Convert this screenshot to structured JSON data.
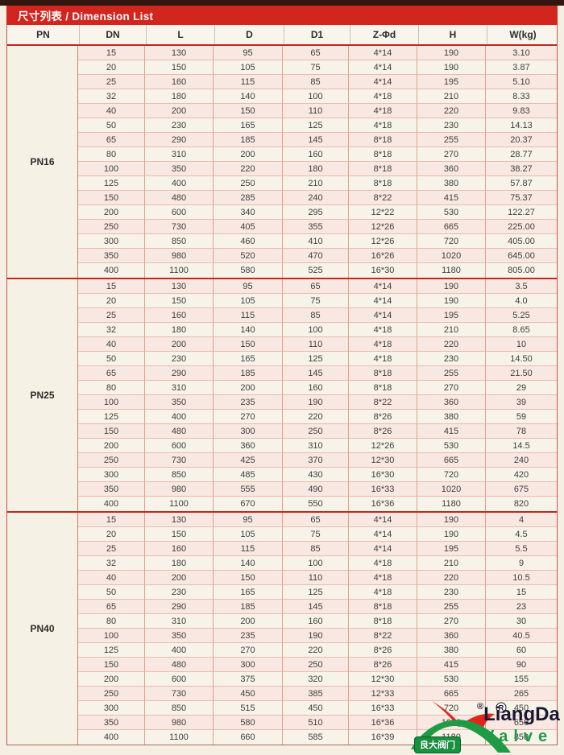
{
  "page": {
    "title": "尺寸列表 / Dimension List"
  },
  "theme": {
    "header_red": "#d2251e",
    "line_red": "#c0271d",
    "row_pink": "#f8e8e1",
    "row_cream": "#f7f3e9",
    "page_bg": "#f5efe3",
    "logo_green": "#1e9b44",
    "logo_red": "#e2241b",
    "brand_navy": "#191832",
    "badge_green": "#16923f"
  },
  "table": {
    "headers": [
      "PN",
      "DN",
      "L",
      "D",
      "D1",
      "Z-Φd",
      "H",
      "W(kg)"
    ],
    "sections": [
      {
        "pn": "PN16",
        "rows": [
          [
            "15",
            "130",
            "95",
            "65",
            "4*14",
            "190",
            "3.10"
          ],
          [
            "20",
            "150",
            "105",
            "75",
            "4*14",
            "190",
            "3.87"
          ],
          [
            "25",
            "160",
            "115",
            "85",
            "4*14",
            "195",
            "5.10"
          ],
          [
            "32",
            "180",
            "140",
            "100",
            "4*18",
            "210",
            "8.33"
          ],
          [
            "40",
            "200",
            "150",
            "110",
            "4*18",
            "220",
            "9.83"
          ],
          [
            "50",
            "230",
            "165",
            "125",
            "4*18",
            "230",
            "14.13"
          ],
          [
            "65",
            "290",
            "185",
            "145",
            "8*18",
            "255",
            "20.37"
          ],
          [
            "80",
            "310",
            "200",
            "160",
            "8*18",
            "270",
            "28.77"
          ],
          [
            "100",
            "350",
            "220",
            "180",
            "8*18",
            "360",
            "38.27"
          ],
          [
            "125",
            "400",
            "250",
            "210",
            "8*18",
            "380",
            "57.87"
          ],
          [
            "150",
            "480",
            "285",
            "240",
            "8*22",
            "415",
            "75.37"
          ],
          [
            "200",
            "600",
            "340",
            "295",
            "12*22",
            "530",
            "122.27"
          ],
          [
            "250",
            "730",
            "405",
            "355",
            "12*26",
            "665",
            "225.00"
          ],
          [
            "300",
            "850",
            "460",
            "410",
            "12*26",
            "720",
            "405.00"
          ],
          [
            "350",
            "980",
            "520",
            "470",
            "16*26",
            "1020",
            "645.00"
          ],
          [
            "400",
            "1100",
            "580",
            "525",
            "16*30",
            "1180",
            "805.00"
          ]
        ]
      },
      {
        "pn": "PN25",
        "rows": [
          [
            "15",
            "130",
            "95",
            "65",
            "4*14",
            "190",
            "3.5"
          ],
          [
            "20",
            "150",
            "105",
            "75",
            "4*14",
            "190",
            "4.0"
          ],
          [
            "25",
            "160",
            "115",
            "85",
            "4*14",
            "195",
            "5.25"
          ],
          [
            "32",
            "180",
            "140",
            "100",
            "4*18",
            "210",
            "8.65"
          ],
          [
            "40",
            "200",
            "150",
            "110",
            "4*18",
            "220",
            "10"
          ],
          [
            "50",
            "230",
            "165",
            "125",
            "4*18",
            "230",
            "14.50"
          ],
          [
            "65",
            "290",
            "185",
            "145",
            "8*18",
            "255",
            "21.50"
          ],
          [
            "80",
            "310",
            "200",
            "160",
            "8*18",
            "270",
            "29"
          ],
          [
            "100",
            "350",
            "235",
            "190",
            "8*22",
            "360",
            "39"
          ],
          [
            "125",
            "400",
            "270",
            "220",
            "8*26",
            "380",
            "59"
          ],
          [
            "150",
            "480",
            "300",
            "250",
            "8*26",
            "415",
            "78"
          ],
          [
            "200",
            "600",
            "360",
            "310",
            "12*26",
            "530",
            "14.5"
          ],
          [
            "250",
            "730",
            "425",
            "370",
            "12*30",
            "665",
            "240"
          ],
          [
            "300",
            "850",
            "485",
            "430",
            "16*30",
            "720",
            "420"
          ],
          [
            "350",
            "980",
            "555",
            "490",
            "16*33",
            "1020",
            "675"
          ],
          [
            "400",
            "1100",
            "670",
            "550",
            "16*36",
            "1180",
            "820"
          ]
        ]
      },
      {
        "pn": "PN40",
        "rows": [
          [
            "15",
            "130",
            "95",
            "65",
            "4*14",
            "190",
            "4"
          ],
          [
            "20",
            "150",
            "105",
            "75",
            "4*14",
            "190",
            "4.5"
          ],
          [
            "25",
            "160",
            "115",
            "85",
            "4*14",
            "195",
            "5.5"
          ],
          [
            "32",
            "180",
            "140",
            "100",
            "4*18",
            "210",
            "9"
          ],
          [
            "40",
            "200",
            "150",
            "110",
            "4*18",
            "220",
            "10.5"
          ],
          [
            "50",
            "230",
            "165",
            "125",
            "4*18",
            "230",
            "15"
          ],
          [
            "65",
            "290",
            "185",
            "145",
            "8*18",
            "255",
            "23"
          ],
          [
            "80",
            "310",
            "200",
            "160",
            "8*18",
            "270",
            "30"
          ],
          [
            "100",
            "350",
            "235",
            "190",
            "8*22",
            "360",
            "40.5"
          ],
          [
            "125",
            "400",
            "270",
            "220",
            "8*26",
            "380",
            "60"
          ],
          [
            "150",
            "480",
            "300",
            "250",
            "8*26",
            "415",
            "90"
          ],
          [
            "200",
            "600",
            "375",
            "320",
            "12*30",
            "530",
            "155"
          ],
          [
            "250",
            "730",
            "450",
            "385",
            "12*33",
            "665",
            "265"
          ],
          [
            "300",
            "850",
            "515",
            "450",
            "16*33",
            "720",
            "450"
          ],
          [
            "350",
            "980",
            "580",
            "510",
            "16*36",
            "1020",
            "650"
          ],
          [
            "400",
            "1100",
            "660",
            "585",
            "16*39",
            "1180",
            "850"
          ]
        ]
      }
    ]
  },
  "logo": {
    "registered": "®",
    "brand": "LiangDa",
    "sub": "Valve",
    "badge": "良大阀门"
  }
}
